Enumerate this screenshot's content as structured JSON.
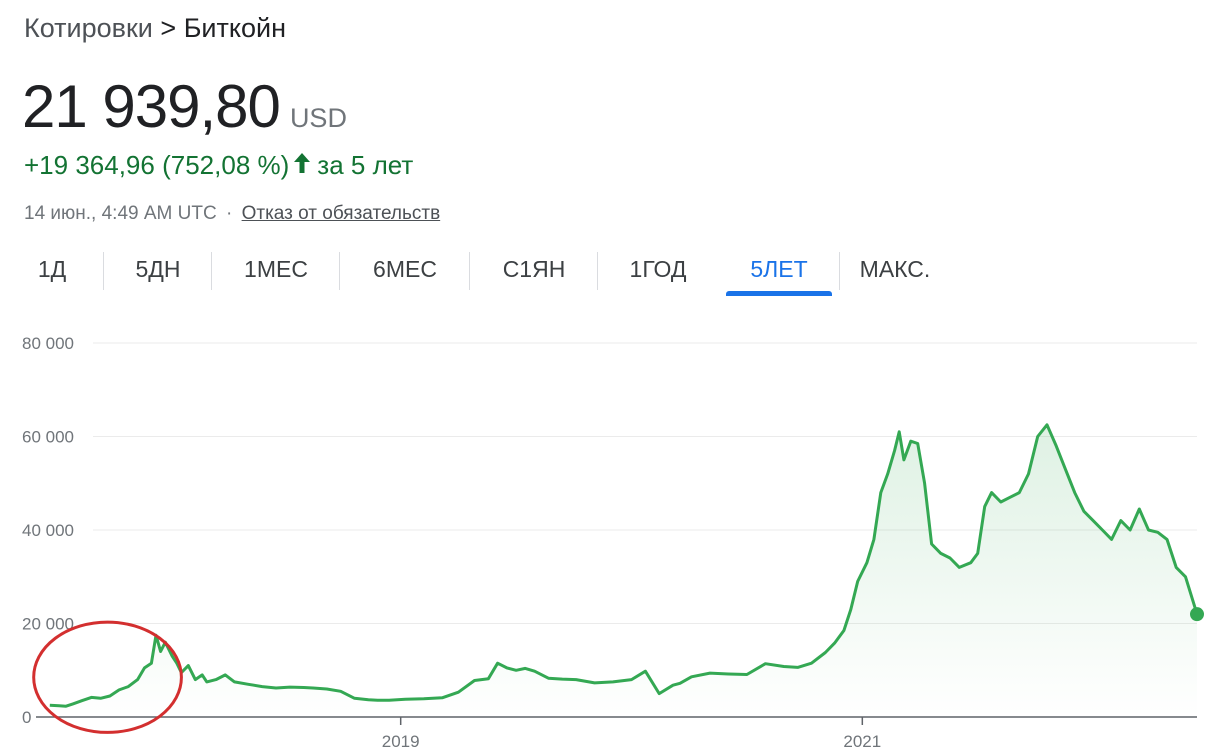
{
  "breadcrumb": {
    "root": "Котировки",
    "separator": ">",
    "current": "Биткойн"
  },
  "price": {
    "value": "21 939,80",
    "currency": "USD"
  },
  "change": {
    "amount": "+19 364,96",
    "percent": "(752,08 %)",
    "period": "за 5 лет",
    "direction_icon": "arrow-up-icon",
    "color": "#137333"
  },
  "meta": {
    "timestamp": "14 июн., 4:49 AM UTC",
    "separator": "·",
    "disclaimer": "Отказ от обязательств"
  },
  "tabs": [
    {
      "label": "1Д",
      "active": false
    },
    {
      "label": "5ДН",
      "active": false
    },
    {
      "label": "1МЕС",
      "active": false
    },
    {
      "label": "6МЕС",
      "active": false
    },
    {
      "label": "С1ЯН",
      "active": false
    },
    {
      "label": "1ГОД",
      "active": false
    },
    {
      "label": "5ЛЕТ",
      "active": true
    },
    {
      "label": "МАКС.",
      "active": false
    }
  ],
  "colors": {
    "line": "#34a853",
    "accent": "#1a73e8",
    "circle_annotation": "#d32f2f"
  },
  "chart_data": {
    "type": "area",
    "title": "",
    "xlabel": "",
    "ylabel": "",
    "ylim": [
      0,
      80000
    ],
    "xlim": [
      2017.42,
      2022.45
    ],
    "yticks": [
      "80 000",
      "60 000",
      "40 000",
      "20 000",
      "0"
    ],
    "ytick_values": [
      80000,
      60000,
      40000,
      20000,
      0
    ],
    "xticks": [
      "2019",
      "2021"
    ],
    "xtick_values": [
      2019.0,
      2021.0
    ],
    "grid": true,
    "annotation": {
      "type": "ellipse",
      "label": "",
      "center": [
        2017.73,
        8500
      ],
      "rx": 0.32,
      "ry": 11800
    },
    "series": [
      {
        "x": [
          2017.48,
          2017.52,
          2017.55,
          2017.58,
          2017.62,
          2017.66,
          2017.7,
          2017.74,
          2017.78,
          2017.82,
          2017.86,
          2017.89,
          2017.92,
          2017.94,
          2017.96,
          2017.98,
          2018.01,
          2018.03,
          2018.05,
          2018.08,
          2018.11,
          2018.14,
          2018.16,
          2018.2,
          2018.24,
          2018.28,
          2018.34,
          2018.4,
          2018.46,
          2018.52,
          2018.58,
          2018.62,
          2018.68,
          2018.74,
          2018.8,
          2018.86,
          2018.9,
          2018.95,
          2019.02,
          2019.1,
          2019.18,
          2019.25,
          2019.32,
          2019.38,
          2019.42,
          2019.46,
          2019.5,
          2019.54,
          2019.58,
          2019.64,
          2019.7,
          2019.76,
          2019.84,
          2019.92,
          2020.0,
          2020.06,
          2020.12,
          2020.18,
          2020.21,
          2020.26,
          2020.34,
          2020.42,
          2020.5,
          2020.58,
          2020.66,
          2020.72,
          2020.78,
          2020.84,
          2020.88,
          2020.92,
          2020.95,
          2020.98,
          2021.02,
          2021.05,
          2021.08,
          2021.11,
          2021.14,
          2021.16,
          2021.18,
          2021.21,
          2021.24,
          2021.27,
          2021.3,
          2021.34,
          2021.38,
          2021.42,
          2021.47,
          2021.5,
          2021.53,
          2021.56,
          2021.6,
          2021.64,
          2021.68,
          2021.72,
          2021.76,
          2021.8,
          2021.84,
          2021.88,
          2021.92,
          2021.96,
          2022.0,
          2022.04,
          2022.08,
          2022.12,
          2022.16,
          2022.2,
          2022.24,
          2022.28,
          2022.32,
          2022.36,
          2022.4,
          2022.45
        ],
        "values": [
          2500,
          2400,
          2300,
          2800,
          3500,
          4200,
          4000,
          4500,
          5800,
          6500,
          8000,
          10500,
          11500,
          17500,
          14000,
          16000,
          13000,
          11500,
          9500,
          11000,
          8000,
          9000,
          7500,
          8000,
          9000,
          7500,
          7000,
          6500,
          6200,
          6400,
          6300,
          6200,
          6000,
          5500,
          4000,
          3700,
          3600,
          3600,
          3800,
          3900,
          4100,
          5300,
          7800,
          8200,
          11500,
          10500,
          10000,
          10400,
          9800,
          8300,
          8100,
          8000,
          7300,
          7500,
          8000,
          9800,
          5000,
          6800,
          7200,
          8600,
          9400,
          9200,
          9100,
          11400,
          10800,
          10600,
          11500,
          13800,
          15800,
          18500,
          23000,
          29000,
          33000,
          38000,
          48000,
          52000,
          57000,
          61000,
          55000,
          59000,
          58500,
          50000,
          37000,
          35000,
          34000,
          32000,
          33000,
          35000,
          45000,
          48000,
          46000,
          47000,
          48000,
          52000,
          60000,
          62500,
          58000,
          53000,
          48000,
          44000,
          42000,
          40000,
          38000,
          42000,
          40000,
          44500,
          40000,
          39500,
          38000,
          32000,
          30000,
          22000
        ]
      }
    ]
  }
}
